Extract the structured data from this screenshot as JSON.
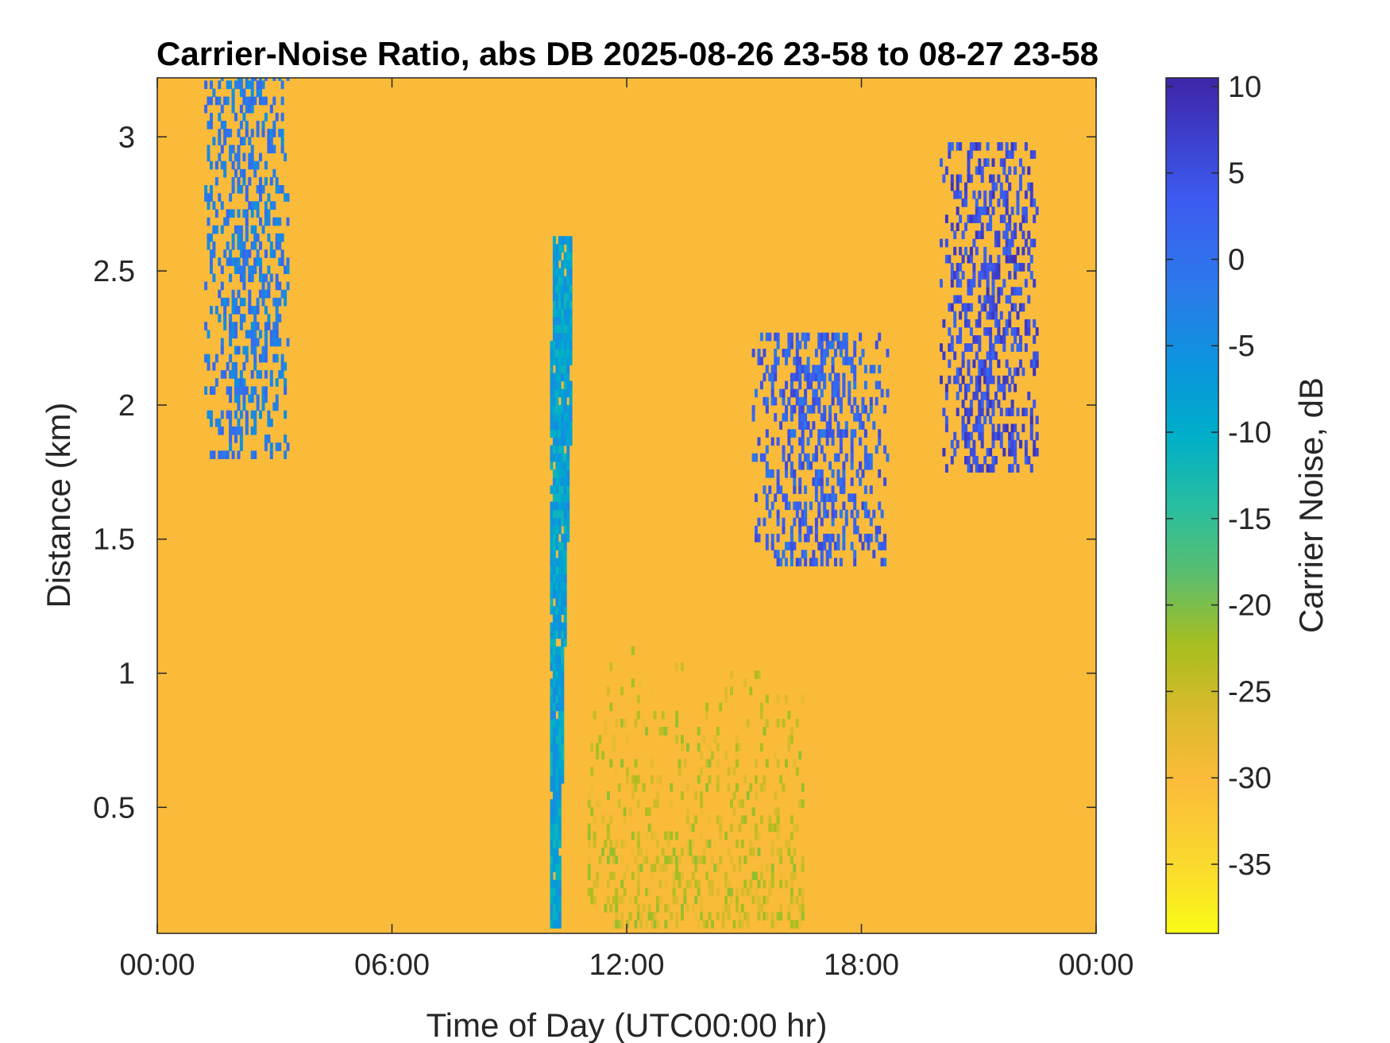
{
  "chart_data": {
    "type": "heatmap",
    "title": "Carrier-Noise Ratio, abs DB 2025-08-26 23-58 to 08-27 23-58",
    "xlabel": "Time of Day (UTC00:00 hr)",
    "ylabel": "Distance (km)",
    "x_unit": "hours",
    "xlim": [
      0,
      24
    ],
    "ylim": [
      0.03,
      3.22
    ],
    "x_ticks": [
      0,
      6,
      12,
      18,
      24
    ],
    "x_tick_labels": [
      "00:00",
      "06:00",
      "12:00",
      "18:00",
      "00:00"
    ],
    "y_ticks": [
      0.5,
      1,
      1.5,
      2,
      2.5,
      3
    ],
    "y_tick_labels": [
      "0.5",
      "1",
      "1.5",
      "2",
      "2.5",
      "3"
    ],
    "background_value_db": -30,
    "colorbar": {
      "label": "Carrier Noise, dB",
      "limits": [
        -39,
        10.5
      ],
      "ticks": [
        10,
        5,
        0,
        -5,
        -10,
        -15,
        -20,
        -25,
        -30,
        -35
      ],
      "tick_labels": [
        "10",
        "5",
        "0",
        "-5",
        "-10",
        "-15",
        "-20",
        "-25",
        "-30",
        "-35"
      ],
      "colormap": "parula",
      "reversed": true
    },
    "features": [
      {
        "name": "column near 10:00",
        "t_start": 9.9,
        "t_end": 10.55,
        "d_start": 0.05,
        "d_end": 2.6,
        "value_db": -8
      },
      {
        "name": "plumes 01:00-03:00",
        "t_start": 1.2,
        "t_end": 3.3,
        "d_start": 1.8,
        "d_end": 3.22,
        "value_db": -2
      },
      {
        "name": "rising layer 15:00-18:30",
        "t_start": 15.2,
        "t_end": 18.7,
        "d_start": 1.4,
        "d_end": 2.25,
        "value_db": 2
      },
      {
        "name": "cluster 20:00-22:30",
        "t_start": 20.0,
        "t_end": 22.5,
        "d_start": 1.75,
        "d_end": 2.95,
        "value_db": 5
      },
      {
        "name": "low-level enhancement 11:00-16:30",
        "t_start": 11.0,
        "t_end": 16.5,
        "d_start": 0.05,
        "d_end": 1.1,
        "value_db": -25
      }
    ]
  }
}
